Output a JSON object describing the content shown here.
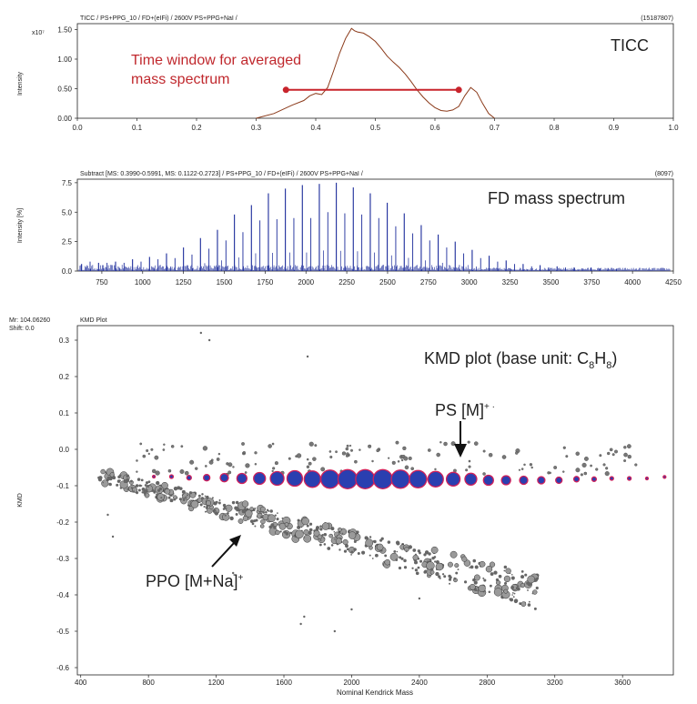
{
  "ticc": {
    "header": "TICC / PS+PPG_10 / FD+(eIFi) / 2600V PS+PPG+NaI /",
    "count": "(15187807)",
    "ylabel": "Intensity",
    "exponent": "x10⁷",
    "label": "TICC",
    "annotation_line1": "Time window for averaged",
    "annotation_line2": "mass spectrum"
  },
  "spectrum": {
    "header": "Subtract [MS: 0.3990-0.5991, MS: 0.1122-0.2723] / PS+PPG_10 / FD+(eIFi) / 2600V PS+PPG+NaI /",
    "count": "(8097)",
    "ylabel": "Intensity [%]",
    "label": "FD mass spectrum"
  },
  "kmd": {
    "mr": "Mr: 104.06260",
    "shift": "Shift: 0.0",
    "plot_title": "KMD Plot",
    "label_prefix": "KMD plot (base unit: C",
    "sub1": "8",
    "label_mid": "H",
    "sub2": "8",
    "label_suffix": ")",
    "ps_label": "PS [M]",
    "ps_sup": "+ ·",
    "ppo_label": "PPO [M+Na]",
    "ppo_sup": "+",
    "xlabel": "Nominal Kendrick Mass",
    "ylabel": "KMD"
  },
  "colors": {
    "ticc_line": "#8b3a1a",
    "window_marker": "#c8242c",
    "spectrum_line": "#1a2a9a",
    "ps_fill": "#2a3fb0",
    "ps_edge": "#d0205a",
    "ppo_fill": "#9a9a9a"
  },
  "chart_data": [
    {
      "type": "line",
      "title": "TICC",
      "xlabel": "",
      "ylabel": "Intensity",
      "xlim": [
        0.0,
        1.0
      ],
      "ylim": [
        0,
        1.6
      ],
      "xticks": [
        "0.0",
        "0.1",
        "0.2",
        "0.3",
        "0.4",
        "0.5",
        "0.6",
        "0.7",
        "0.8",
        "0.9",
        "1.0"
      ],
      "yticks": [
        "0.00",
        "0.50",
        "1.00",
        "1.50"
      ],
      "x": [
        0.3,
        0.33,
        0.36,
        0.38,
        0.39,
        0.4,
        0.41,
        0.42,
        0.43,
        0.44,
        0.45,
        0.46,
        0.465,
        0.47,
        0.48,
        0.49,
        0.5,
        0.51,
        0.52,
        0.53,
        0.54,
        0.55,
        0.56,
        0.57,
        0.58,
        0.59,
        0.6,
        0.61,
        0.62,
        0.63,
        0.64,
        0.65,
        0.66,
        0.67,
        0.68,
        0.69,
        0.7
      ],
      "y": [
        0.0,
        0.08,
        0.22,
        0.3,
        0.38,
        0.42,
        0.4,
        0.52,
        0.8,
        1.1,
        1.35,
        1.52,
        1.48,
        1.46,
        1.44,
        1.38,
        1.3,
        1.18,
        1.05,
        0.95,
        0.86,
        0.75,
        0.62,
        0.48,
        0.36,
        0.26,
        0.18,
        0.13,
        0.12,
        0.14,
        0.2,
        0.38,
        0.52,
        0.44,
        0.25,
        0.08,
        0.0
      ],
      "annotations": [
        {
          "text": "Time window for averaged mass spectrum",
          "x_range": [
            0.35,
            0.64
          ],
          "y": 0.48
        }
      ]
    },
    {
      "type": "bar",
      "title": "FD mass spectrum",
      "xlabel": "",
      "ylabel": "Intensity [%]",
      "xlim": [
        600,
        4250
      ],
      "ylim": [
        0,
        7.8
      ],
      "xticks": [
        "750",
        "1000",
        "1250",
        "1500",
        "1750",
        "2000",
        "2250",
        "2500",
        "2750",
        "3000",
        "3250",
        "3500",
        "3750",
        "4000",
        "4250"
      ],
      "yticks": [
        "0.0",
        "2.5",
        "5.0",
        "7.5"
      ],
      "peaks_mz": [
        626,
        730,
        834,
        938,
        1042,
        1146,
        1250,
        1354,
        1458,
        1562,
        1666,
        1770,
        1874,
        1978,
        2082,
        2186,
        2290,
        2394,
        2498,
        2602,
        2706,
        2810,
        2914,
        3018,
        3122,
        3226,
        3330,
        3434,
        3538,
        3642,
        3746,
        3850
      ],
      "peaks_intensity": [
        0.6,
        0.7,
        0.8,
        1.0,
        1.2,
        1.5,
        2.0,
        2.8,
        3.5,
        4.8,
        5.6,
        6.6,
        7.0,
        7.3,
        7.4,
        7.5,
        7.1,
        6.6,
        5.8,
        4.9,
        3.9,
        3.1,
        2.5,
        1.8,
        1.3,
        0.9,
        0.6,
        0.5,
        0.4,
        0.3,
        0.3,
        0.25
      ],
      "minor_peaks_intensity": [
        0.8,
        0.7,
        0.7,
        0.8,
        1.0,
        1.1,
        1.4,
        1.9,
        2.6,
        3.3,
        4.3,
        4.4,
        4.5,
        4.5,
        5.0,
        4.9,
        4.8,
        4.5,
        3.8,
        3.2,
        2.6,
        2.0,
        1.5,
        1.1,
        0.8,
        0.6,
        0.4,
        0.3,
        0.3,
        0.2,
        0.2,
        0.2
      ]
    },
    {
      "type": "scatter",
      "title": "KMD plot",
      "xlabel": "Nominal Kendrick Mass",
      "ylabel": "KMD",
      "xlim": [
        380,
        3900
      ],
      "ylim": [
        -0.62,
        0.34
      ],
      "xticks": [
        "400",
        "800",
        "1200",
        "1600",
        "2000",
        "2400",
        "2800",
        "3200",
        "3600"
      ],
      "yticks": [
        "0.3",
        "0.2",
        "0.1",
        "0.0",
        "-0.1",
        "-0.2",
        "-0.3",
        "-0.4",
        "-0.5",
        "-0.6"
      ],
      "series": [
        {
          "name": "PS [M]+·",
          "x": [
            832,
            936,
            1040,
            1144,
            1248,
            1352,
            1456,
            1560,
            1664,
            1768,
            1872,
            1976,
            2080,
            2184,
            2288,
            2392,
            2496,
            2600,
            2704,
            2808,
            2912,
            3016,
            3120,
            3224,
            3328,
            3432,
            3536,
            3640,
            3744,
            3848
          ],
          "y": [
            -0.075,
            -0.075,
            -0.078,
            -0.078,
            -0.078,
            -0.08,
            -0.08,
            -0.08,
            -0.08,
            -0.082,
            -0.082,
            -0.082,
            -0.082,
            -0.082,
            -0.082,
            -0.082,
            -0.082,
            -0.082,
            -0.082,
            -0.085,
            -0.085,
            -0.085,
            -0.085,
            -0.085,
            -0.082,
            -0.082,
            -0.08,
            -0.08,
            -0.08,
            -0.076
          ],
          "size": [
            1.5,
            2,
            2.5,
            3.5,
            4.5,
            5.5,
            6.5,
            7.5,
            8.5,
            9,
            10,
            10.5,
            10.5,
            10.5,
            10,
            9.5,
            8.5,
            7.5,
            6.5,
            5.5,
            5,
            4.5,
            4,
            3.5,
            3,
            2.5,
            2,
            2,
            1.5,
            1.5
          ]
        },
        {
          "name": "PPO [M+Na]+",
          "trend": "KMD decreases linearly from about -0.07 at mass 500 to about -0.38 at mass 3000"
        }
      ],
      "annotations": [
        {
          "text": "PS [M]+·",
          "x": 2580,
          "y": 0.06
        },
        {
          "text": "PPO [M+Na]+",
          "x": 1200,
          "y": -0.37
        }
      ]
    }
  ]
}
